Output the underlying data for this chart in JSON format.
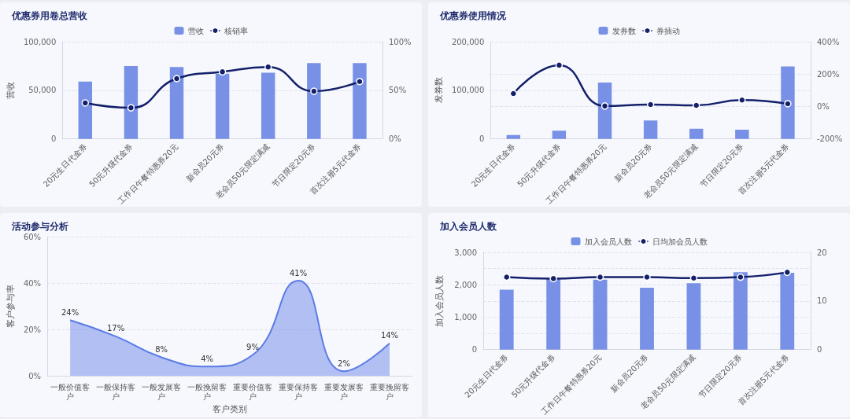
{
  "chart_data": [
    {
      "type": "bar",
      "title": "优惠券用卷总营收",
      "ylabel": "营收",
      "categories": [
        "20元生日代金券",
        "50元升级代金券",
        "工作日午餐特惠券20元",
        "新会员20元券",
        "老会员50元限定满减",
        "节日限定20元券",
        "首次注册5元代金券"
      ],
      "series": [
        {
          "name": "营收",
          "color": "#7891e6",
          "values": [
            59000,
            75000,
            74000,
            67000,
            68000,
            78000,
            78000
          ]
        },
        {
          "name": "核销率",
          "type": "line",
          "axis": "y2",
          "color": "#14206b",
          "values": [
            37,
            32,
            62,
            69,
            74,
            49,
            59
          ]
        }
      ],
      "ylim": [
        0,
        100000
      ],
      "yticks": [
        {
          "value": 0,
          "label": "0"
        },
        {
          "value": 50000,
          "label": "50,000"
        },
        {
          "value": 100000,
          "label": "100,000"
        }
      ],
      "y2lim": [
        0,
        100
      ],
      "y2ticks": [
        {
          "value": 0,
          "label": "0%"
        },
        {
          "value": 50,
          "label": "50%"
        },
        {
          "value": 100,
          "label": "100%"
        }
      ],
      "grid": true,
      "legend": "top",
      "marker": "circle"
    },
    {
      "type": "bar",
      "title": "优惠券使用情况",
      "ylabel": "发券数",
      "categories": [
        "20元生日代金券",
        "50元升级代金券",
        "工作日午餐特惠券20元",
        "新会员20元券",
        "老会员50元限定满减",
        "节日限定20元券",
        "首次注册5元代金券"
      ],
      "series": [
        {
          "name": "发券数",
          "color": "#7891e6",
          "values": [
            8000,
            17000,
            116000,
            38000,
            21000,
            19000,
            149000
          ]
        },
        {
          "name": "券插动",
          "type": "line",
          "axis": "y2",
          "color": "#14206b",
          "values": [
            80,
            255,
            3,
            12,
            7,
            40,
            17
          ]
        }
      ],
      "ylim": [
        0,
        200000
      ],
      "yticks": [
        {
          "value": 0,
          "label": "0"
        },
        {
          "value": 100000,
          "label": "100,000"
        },
        {
          "value": 200000,
          "label": "200,000"
        }
      ],
      "y2lim": [
        -200,
        400
      ],
      "y2ticks": [
        {
          "value": -200,
          "label": "-200%"
        },
        {
          "value": 0,
          "label": "0%"
        },
        {
          "value": 200,
          "label": "200%"
        },
        {
          "value": 400,
          "label": "400%"
        }
      ],
      "grid": true,
      "legend": "top",
      "marker": "circle"
    },
    {
      "type": "area",
      "title": "活动参与分析",
      "xlabel": "客户类别",
      "ylabel": "客户参与率",
      "categories": [
        "一般价值客户",
        "一般保持客户",
        "一般发展客户",
        "一般挽留客户",
        "重要价值客户",
        "重要保持客户",
        "重要发展客户",
        "重要挽留客户"
      ],
      "values": [
        24,
        17,
        8,
        4,
        9,
        41,
        2,
        14
      ],
      "value_labels": [
        "24%",
        "17%",
        "8%",
        "4%",
        "9%",
        "41%",
        "2%",
        "14%"
      ],
      "color": "#5b7be6",
      "ylim": [
        0,
        60
      ],
      "yticks": [
        {
          "value": 0,
          "label": "0%"
        },
        {
          "value": 20,
          "label": "20%"
        },
        {
          "value": 40,
          "label": "40%"
        },
        {
          "value": 60,
          "label": "60%"
        }
      ],
      "grid": "y"
    },
    {
      "type": "bar",
      "title": "加入会员人数",
      "ylabel": "加入会员人数",
      "categories": [
        "20元生日代金券",
        "50元升级代金券",
        "工作日午餐特惠券20元",
        "新会员20元券",
        "老会员50元限定满减",
        "节日限定20元券",
        "首次注册5元代金券"
      ],
      "series": [
        {
          "name": "加入会员人数",
          "color": "#7891e6",
          "values": [
            1850,
            2180,
            2160,
            1910,
            2050,
            2390,
            2370
          ]
        },
        {
          "name": "日均加会员人数",
          "type": "line",
          "axis": "y2",
          "color": "#14206b",
          "values": [
            14.9,
            14.6,
            14.9,
            14.9,
            14.7,
            14.9,
            15.9
          ]
        }
      ],
      "ylim": [
        0,
        3000
      ],
      "yticks": [
        {
          "value": 0,
          "label": "0"
        },
        {
          "value": 500,
          "label": null
        },
        {
          "value": 1000,
          "label": "1,000"
        },
        {
          "value": 1500,
          "label": null
        },
        {
          "value": 2000,
          "label": "2,000"
        },
        {
          "value": 2500,
          "label": null
        },
        {
          "value": 3000,
          "label": "3,000"
        }
      ],
      "y2lim": [
        0,
        20
      ],
      "y2ticks": [
        {
          "value": 0,
          "label": "0"
        },
        10,
        20
      ],
      "grid": true,
      "legend": "top",
      "marker": "circle"
    }
  ]
}
